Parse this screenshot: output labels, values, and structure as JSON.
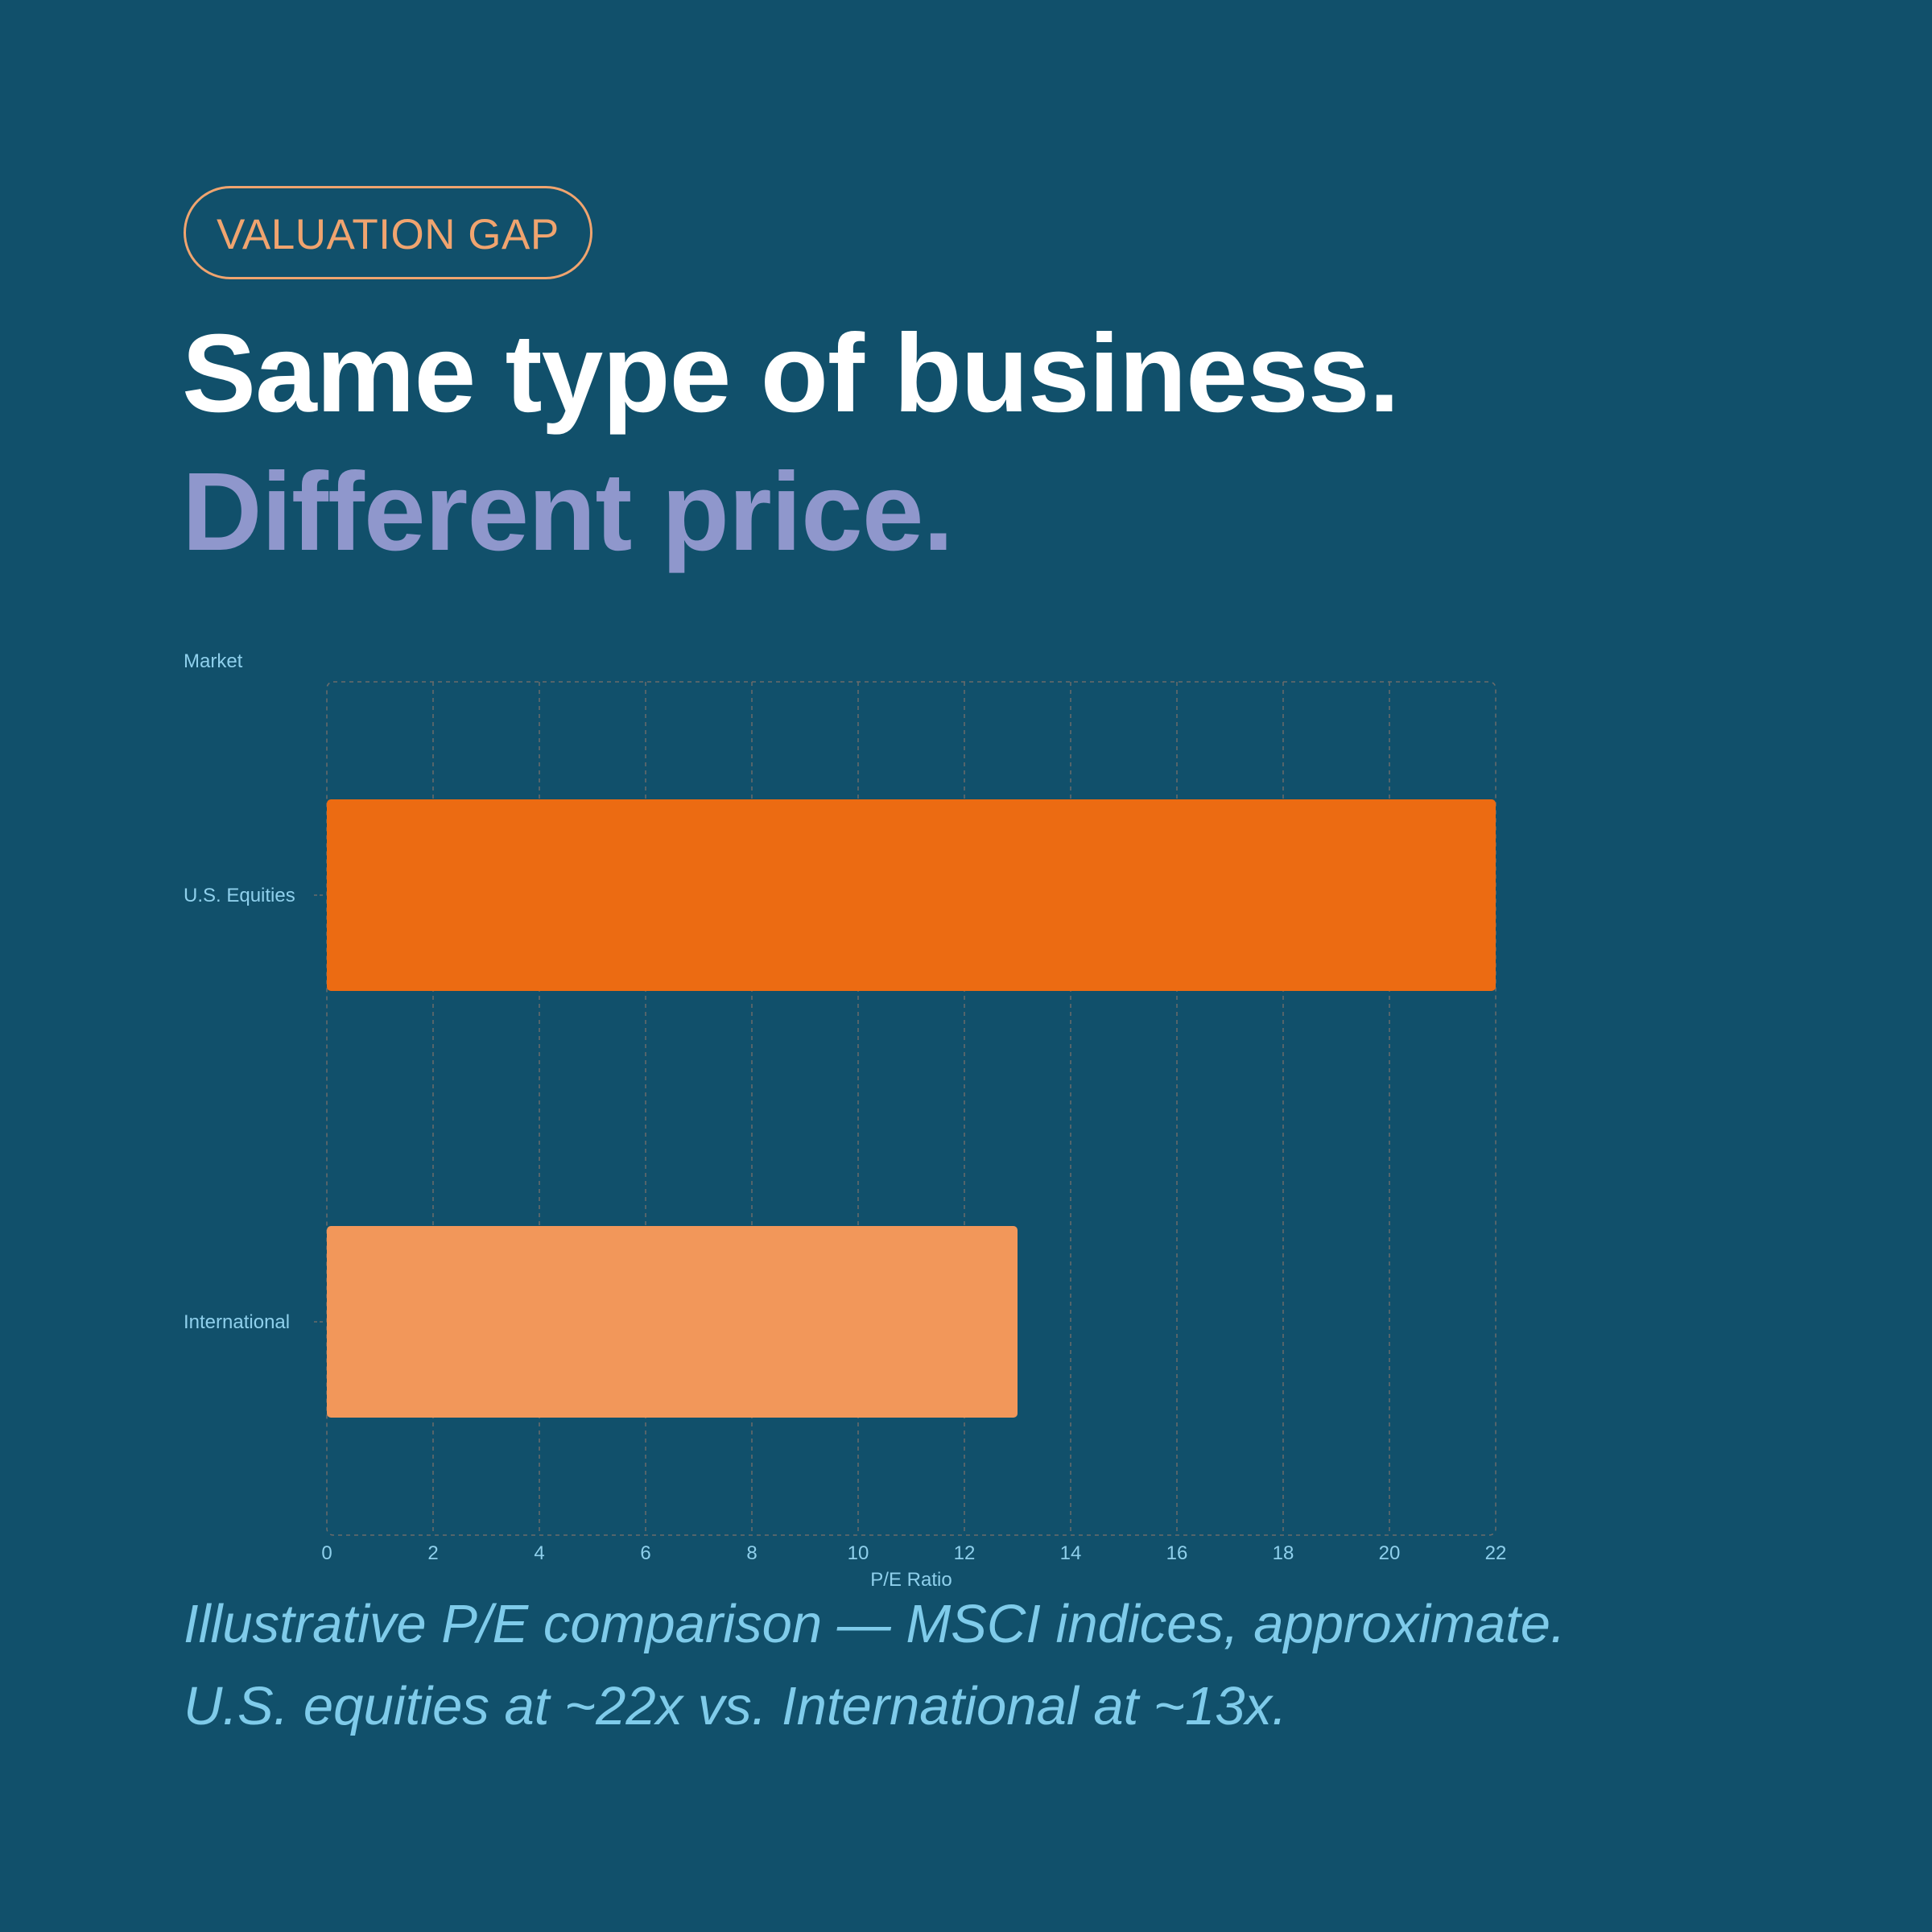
{
  "badge": {
    "label": "VALUATION GAP"
  },
  "headline": {
    "line1": "Same type of business.",
    "line2": "Different price."
  },
  "caption": {
    "line1": "Illustrative P/E comparison — MSCI indices, approximate.",
    "line2": "U.S. equities at ~22x vs. International at ~13x."
  },
  "colors": {
    "background": "#11506b",
    "accent": "#f0a46f",
    "headline_secondary": "#8f97cc",
    "bar_us": "#ec6b12",
    "bar_international": "#f2975a",
    "axis_text": "#8fd0ec"
  },
  "chart_data": {
    "type": "bar",
    "orientation": "horizontal",
    "categories": [
      "U.S. Equities",
      "International"
    ],
    "values": [
      22,
      13
    ],
    "bar_colors": [
      "#ec6b12",
      "#f2975a"
    ],
    "xlabel": "P/E Ratio",
    "ylabel": "Market",
    "xlim": [
      0,
      22
    ],
    "xticks": [
      0,
      2,
      4,
      6,
      8,
      10,
      12,
      14,
      16,
      18,
      20,
      22
    ],
    "grid": true
  }
}
